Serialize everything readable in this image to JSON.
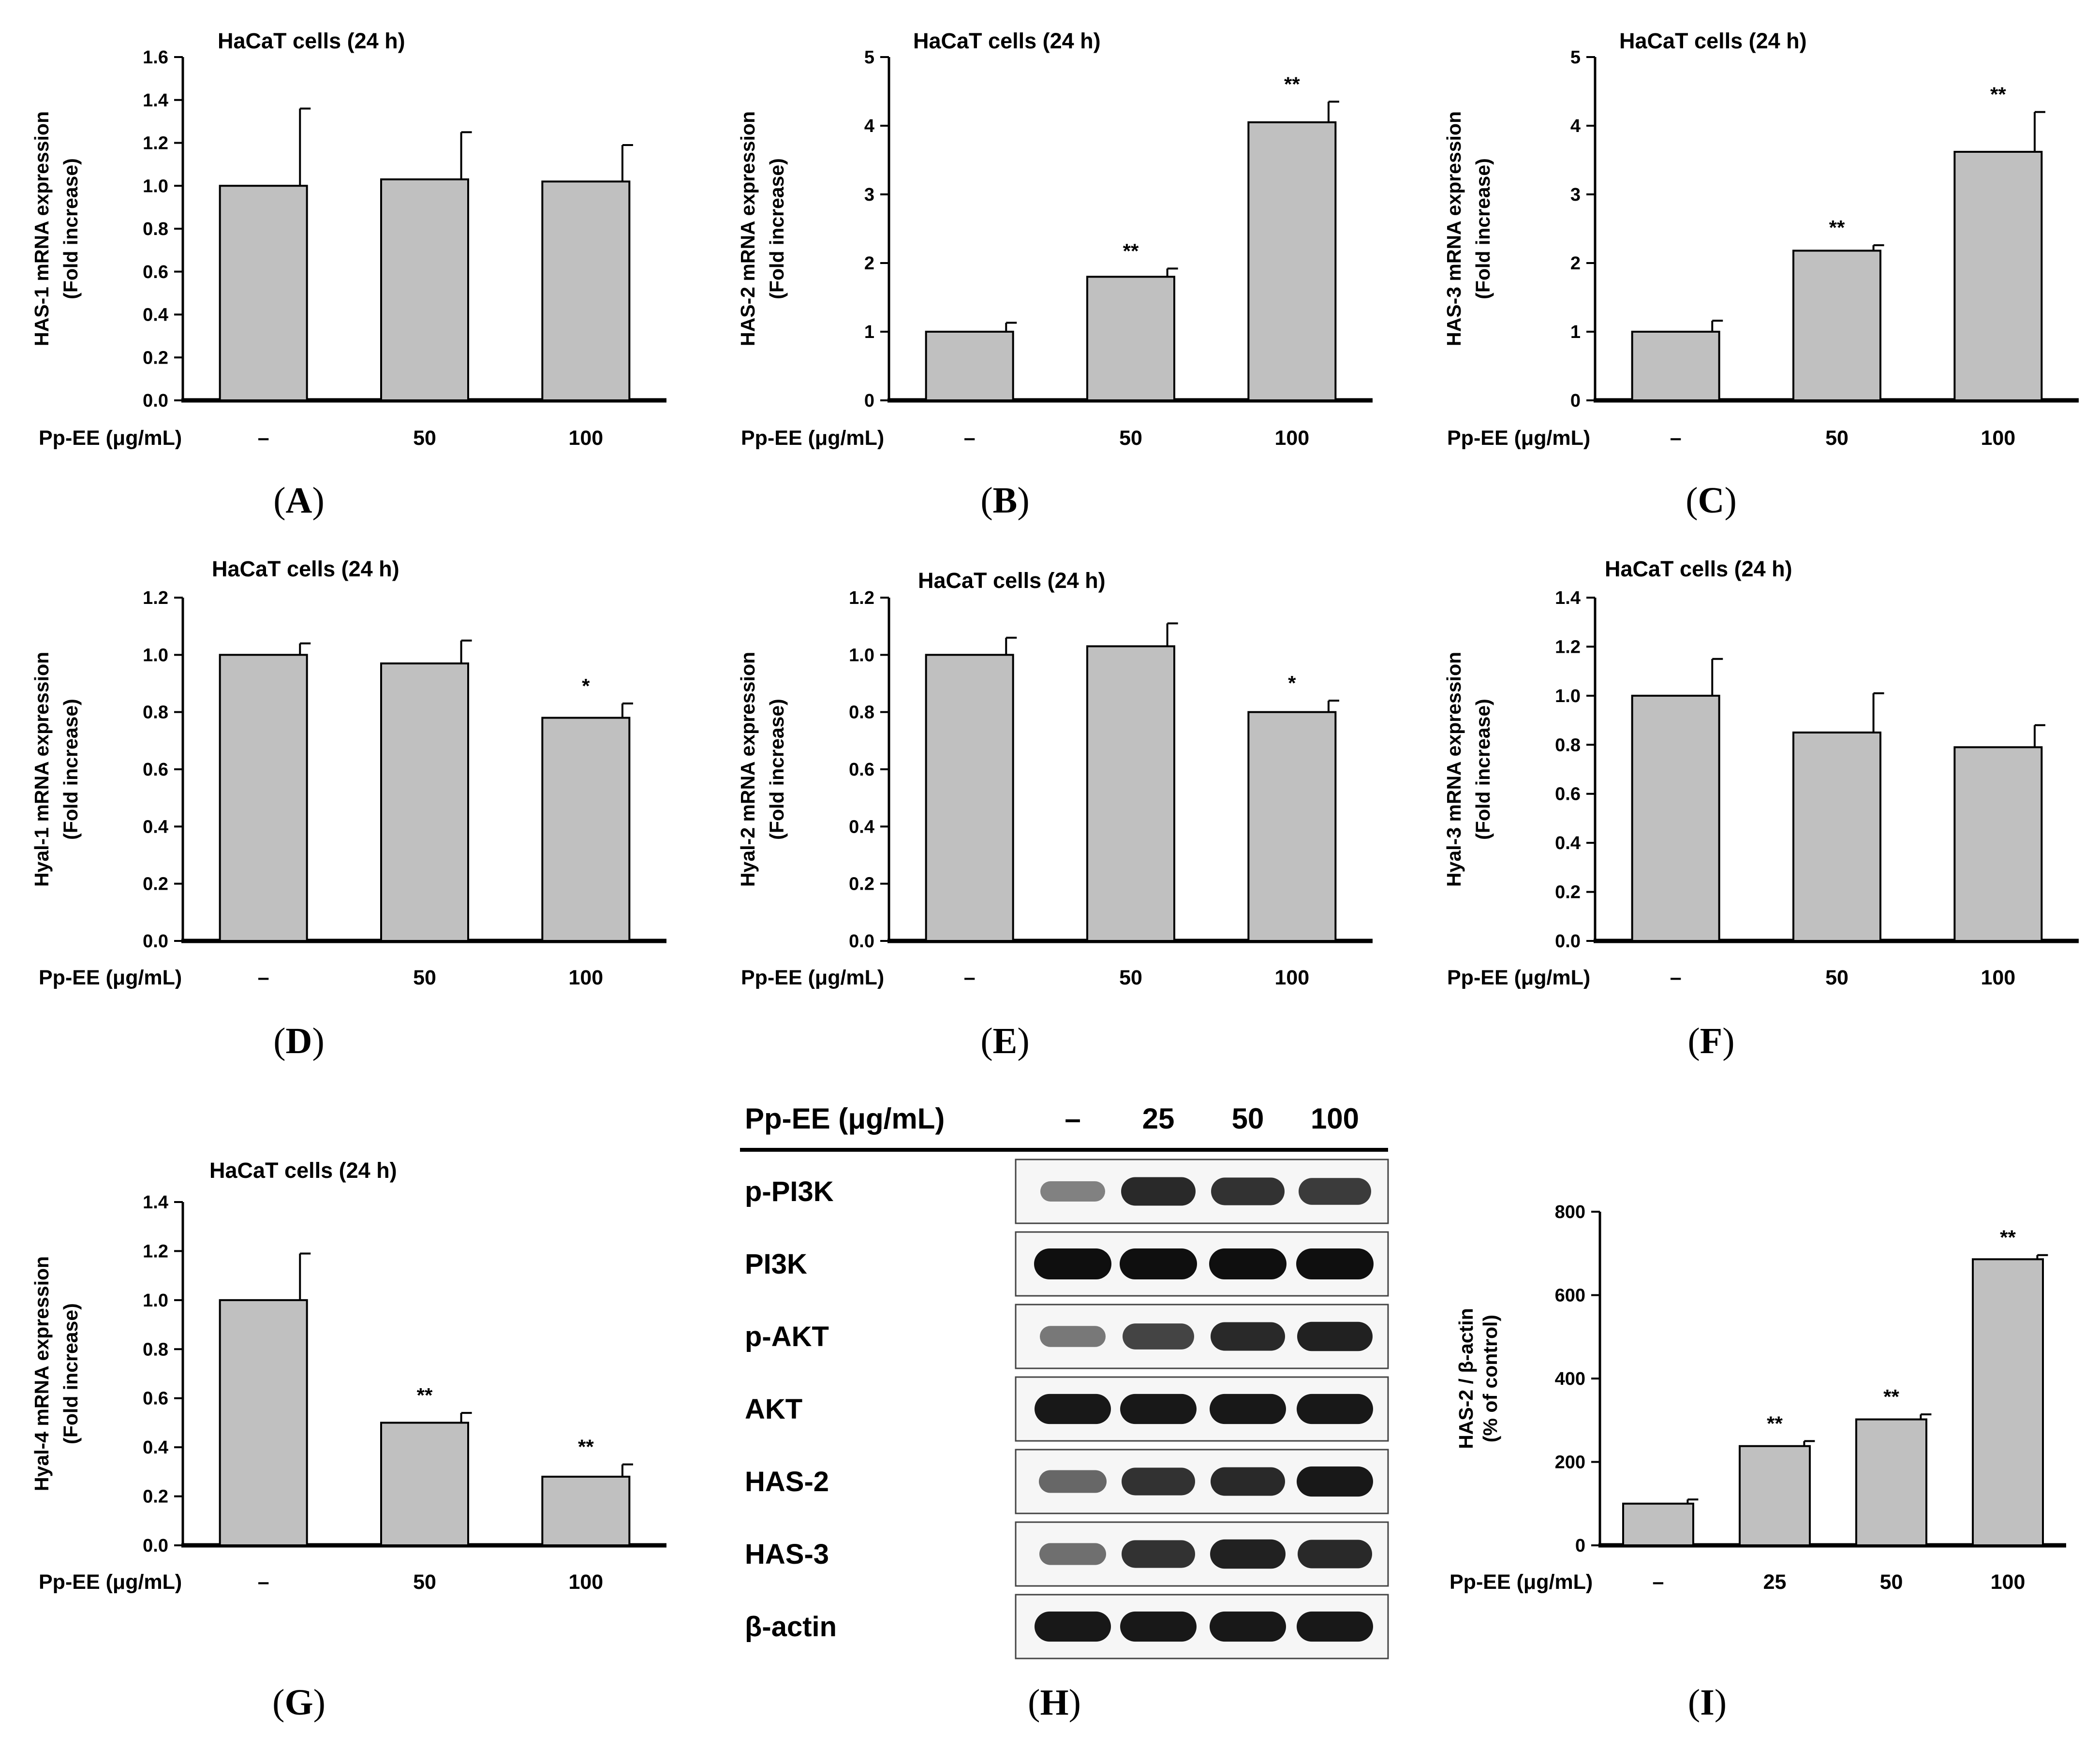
{
  "chart_data": [
    {
      "id": "A",
      "type": "bar",
      "title": "HaCaT cells (24 h)",
      "ylabel": [
        "HAS-1 mRNA expression",
        "(Fold increase)"
      ],
      "treatment_label": "Pp-EE (μg/mL)",
      "categories": [
        "–",
        "50",
        "100"
      ],
      "values": [
        1.0,
        1.03,
        1.02
      ],
      "errors": [
        0.36,
        0.22,
        0.17
      ],
      "significance": [
        "",
        "",
        ""
      ],
      "ylim": [
        0,
        1.6
      ],
      "yticks": [
        "0.0",
        "0.2",
        "0.4",
        "0.6",
        "0.8",
        "1.0",
        "1.2",
        "1.4",
        "1.6"
      ],
      "panel_label": "A"
    },
    {
      "id": "B",
      "type": "bar",
      "title": "HaCaT cells (24 h)",
      "ylabel": [
        "HAS-2 mRNA expression",
        "(Fold increase)"
      ],
      "treatment_label": "Pp-EE (μg/mL)",
      "categories": [
        "–",
        "50",
        "100"
      ],
      "values": [
        1.0,
        1.8,
        4.05
      ],
      "errors": [
        0.13,
        0.12,
        0.3
      ],
      "significance": [
        "",
        "**",
        "**"
      ],
      "ylim": [
        0,
        5
      ],
      "yticks": [
        "0",
        "1",
        "2",
        "3",
        "4",
        "5"
      ],
      "panel_label": "B"
    },
    {
      "id": "C",
      "type": "bar",
      "title": "HaCaT cells (24 h)",
      "ylabel": [
        "HAS-3 mRNA expression",
        "(Fold increase)"
      ],
      "treatment_label": "Pp-EE (μg/mL)",
      "categories": [
        "–",
        "50",
        "100"
      ],
      "values": [
        1.0,
        2.18,
        3.62
      ],
      "errors": [
        0.16,
        0.08,
        0.58
      ],
      "significance": [
        "",
        "**",
        "**"
      ],
      "ylim": [
        0,
        5
      ],
      "yticks": [
        "0",
        "1",
        "2",
        "3",
        "4",
        "5"
      ],
      "panel_label": "C"
    },
    {
      "id": "D",
      "type": "bar",
      "title": "HaCaT cells (24 h)",
      "ylabel": [
        "Hyal-1 mRNA expression",
        "(Fold increase)"
      ],
      "treatment_label": "Pp-EE (μg/mL)",
      "categories": [
        "–",
        "50",
        "100"
      ],
      "values": [
        1.0,
        0.97,
        0.78
      ],
      "errors": [
        0.04,
        0.08,
        0.05
      ],
      "significance": [
        "",
        "",
        "*"
      ],
      "ylim": [
        0,
        1.2
      ],
      "yticks": [
        "0.0",
        "0.2",
        "0.4",
        "0.6",
        "0.8",
        "1.0",
        "1.2"
      ],
      "panel_label": "D"
    },
    {
      "id": "E",
      "type": "bar",
      "title": "HaCaT cells (24 h)",
      "ylabel": [
        "Hyal-2 mRNA expression",
        "(Fold increase)"
      ],
      "treatment_label": "Pp-EE (μg/mL)",
      "categories": [
        "–",
        "50",
        "100"
      ],
      "values": [
        1.0,
        1.03,
        0.8
      ],
      "errors": [
        0.06,
        0.08,
        0.04
      ],
      "significance": [
        "",
        "",
        "*"
      ],
      "ylim": [
        0,
        1.2
      ],
      "yticks": [
        "0.0",
        "0.2",
        "0.4",
        "0.6",
        "0.8",
        "1.0",
        "1.2"
      ],
      "panel_label": "E"
    },
    {
      "id": "F",
      "type": "bar",
      "title": "HaCaT cells (24 h)",
      "ylabel": [
        "Hyal-3 mRNA expression",
        "(Fold increase)"
      ],
      "treatment_label": "Pp-EE (μg/mL)",
      "categories": [
        "–",
        "50",
        "100"
      ],
      "values": [
        1.0,
        0.85,
        0.79
      ],
      "errors": [
        0.15,
        0.16,
        0.09
      ],
      "significance": [
        "",
        "",
        ""
      ],
      "ylim": [
        0,
        1.4
      ],
      "yticks": [
        "0.0",
        "0.2",
        "0.4",
        "0.6",
        "0.8",
        "1.0",
        "1.2",
        "1.4"
      ],
      "panel_label": "F"
    },
    {
      "id": "G",
      "type": "bar",
      "title": "HaCaT cells (24 h)",
      "ylabel": [
        "Hyal-4 mRNA expression",
        "(Fold increase)"
      ],
      "treatment_label": "Pp-EE (μg/mL)",
      "categories": [
        "–",
        "50",
        "100"
      ],
      "values": [
        1.0,
        0.5,
        0.28
      ],
      "errors": [
        0.19,
        0.04,
        0.05
      ],
      "significance": [
        "",
        "**",
        "**"
      ],
      "ylim": [
        0,
        1.4
      ],
      "yticks": [
        "0.0",
        "0.2",
        "0.4",
        "0.6",
        "0.8",
        "1.0",
        "1.2",
        "1.4"
      ],
      "panel_label": "G"
    },
    {
      "id": "I",
      "type": "bar",
      "title": "",
      "ylabel": [
        "HAS-2 / β-actin",
        "(% of control)"
      ],
      "treatment_label": "Pp-EE (μg/mL)",
      "categories": [
        "–",
        "25",
        "50",
        "100"
      ],
      "values": [
        100,
        238,
        302,
        686
      ],
      "errors": [
        10,
        12,
        12,
        10
      ],
      "significance": [
        "",
        "**",
        "**",
        "**"
      ],
      "ylim": [
        0,
        800
      ],
      "yticks": [
        "0",
        "200",
        "400",
        "600",
        "800"
      ],
      "panel_label": "I"
    }
  ],
  "western_blot": {
    "panel_label": "H",
    "treatment_label": "Pp-EE (μg/mL)",
    "lanes": [
      "–",
      "25",
      "50",
      "100"
    ],
    "rows": [
      {
        "label": "p-PI3K",
        "intensity": [
          0.35,
          0.85,
          0.8,
          0.75
        ]
      },
      {
        "label": "PI3K",
        "intensity": [
          1.0,
          1.0,
          1.0,
          1.0
        ]
      },
      {
        "label": "p-AKT",
        "intensity": [
          0.4,
          0.7,
          0.85,
          0.9
        ]
      },
      {
        "label": "AKT",
        "intensity": [
          0.95,
          0.95,
          0.95,
          0.95
        ]
      },
      {
        "label": "HAS-2",
        "intensity": [
          0.5,
          0.8,
          0.85,
          0.95
        ]
      },
      {
        "label": "HAS-3",
        "intensity": [
          0.45,
          0.8,
          0.9,
          0.85
        ]
      },
      {
        "label": "β-actin",
        "intensity": [
          0.95,
          0.95,
          0.95,
          0.95
        ]
      }
    ]
  }
}
